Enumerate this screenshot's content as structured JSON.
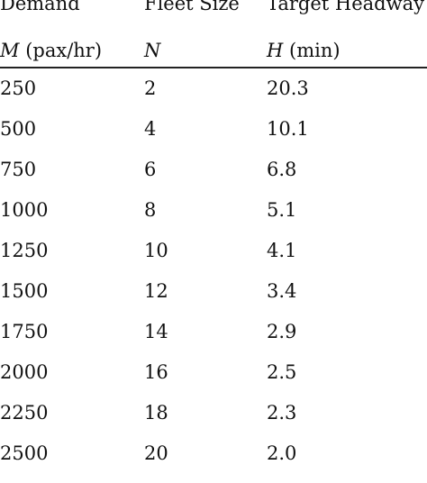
{
  "table": {
    "headers": {
      "row1": [
        "Demand",
        "Fleet Size",
        "Target Headway"
      ],
      "row2": [
        {
          "symbol": "M",
          "unit": "(pax/hr)"
        },
        {
          "symbol": "N",
          "unit": ""
        },
        {
          "symbol": "H",
          "unit": "(min)"
        }
      ]
    },
    "rows": [
      [
        "250",
        "2",
        "20.3"
      ],
      [
        "500",
        "4",
        "10.1"
      ],
      [
        "750",
        "6",
        "6.8"
      ],
      [
        "1000",
        "8",
        "5.1"
      ],
      [
        "1250",
        "10",
        "4.1"
      ],
      [
        "1500",
        "12",
        "3.4"
      ],
      [
        "1750",
        "14",
        "2.9"
      ],
      [
        "2000",
        "16",
        "2.5"
      ],
      [
        "2250",
        "18",
        "2.3"
      ],
      [
        "2500",
        "20",
        "2.0"
      ]
    ]
  }
}
